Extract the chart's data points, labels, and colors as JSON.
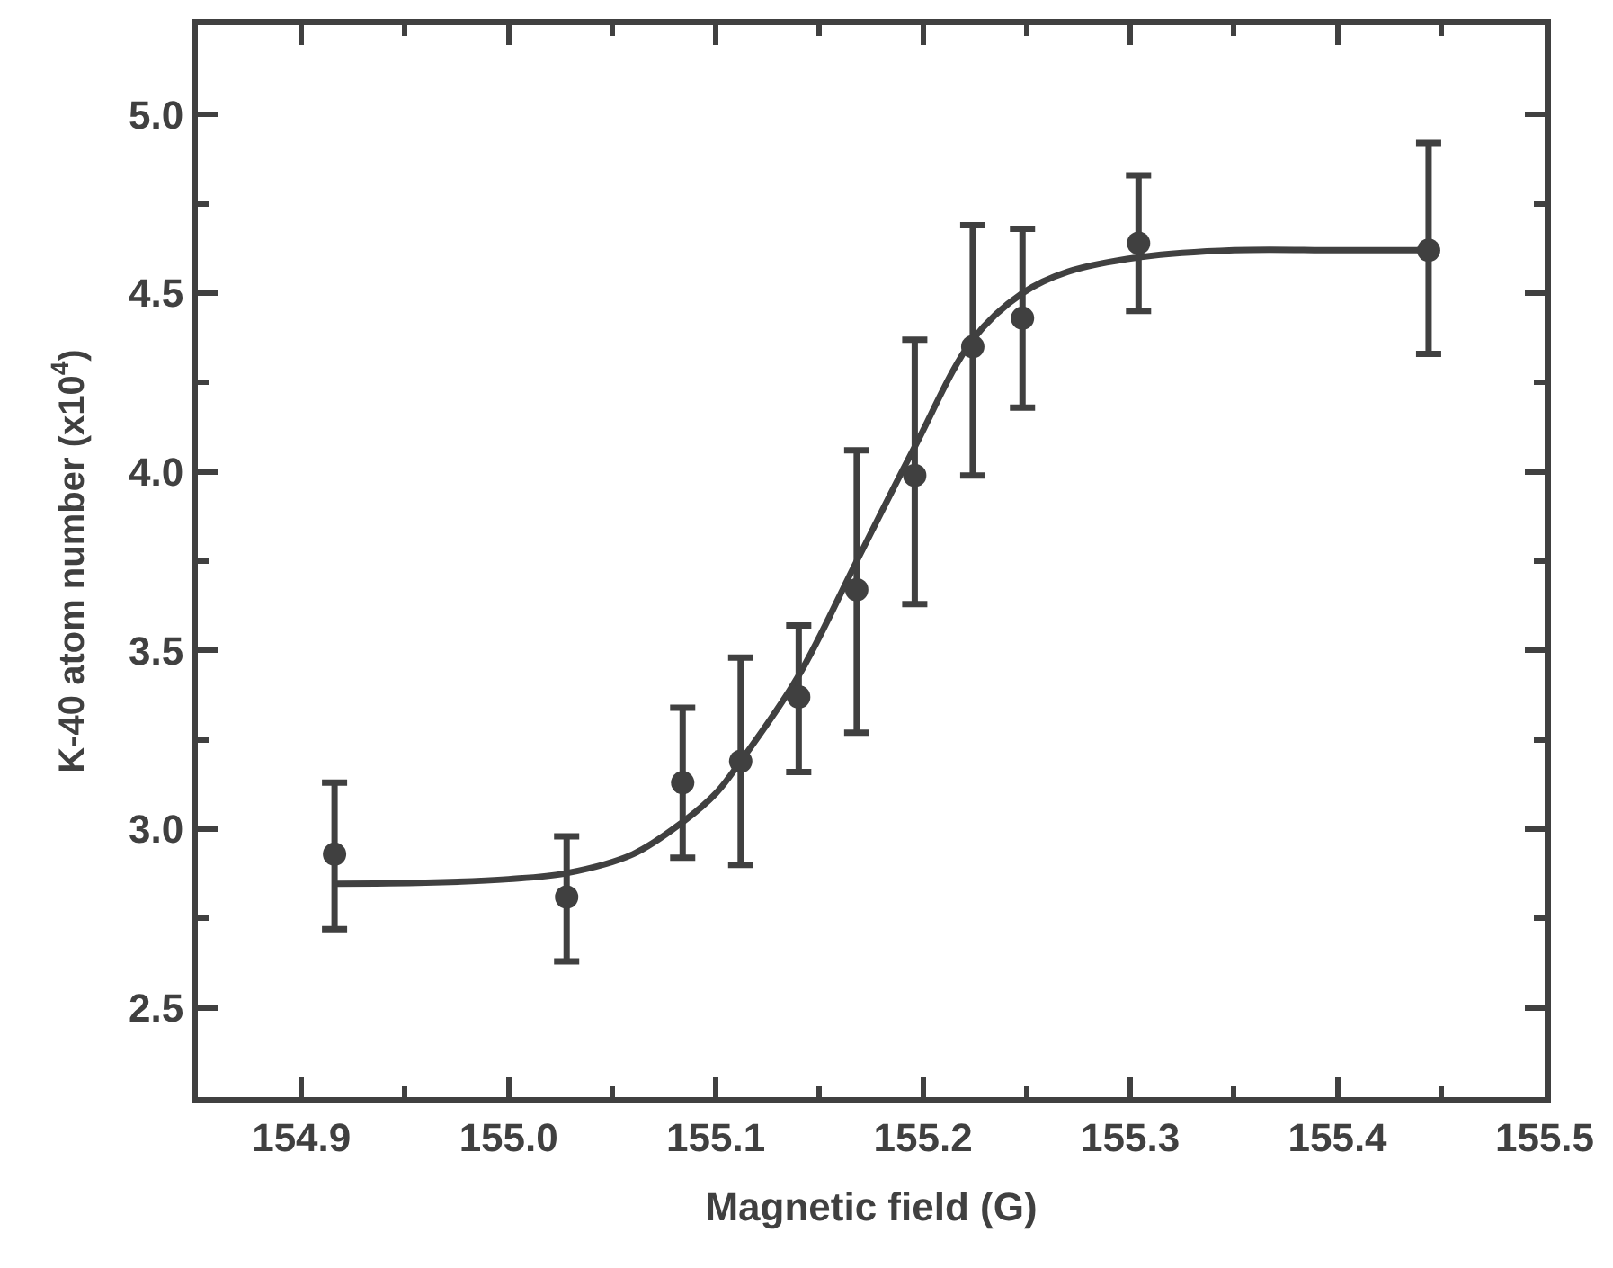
{
  "chart_data": {
    "type": "scatter",
    "xlabel": "Magnetic field (G)",
    "ylabel": "K-40 atom number (x10$^{4}$)",
    "xlim": [
      154.85,
      155.5
    ],
    "ylim": [
      2.25,
      5.25
    ],
    "xticks": [
      154.9,
      {
        "value": 155,
        "label": "155.0"
      },
      155.1,
      155.2,
      155.3,
      155.4,
      155.5,
      {
        "value": 154.95,
        "label": null
      },
      {
        "value": 155.05,
        "label": null
      },
      {
        "value": 155.15,
        "label": null
      },
      {
        "value": 155.25,
        "label": null
      },
      {
        "value": 155.35,
        "label": null
      },
      {
        "value": 155.45,
        "label": null
      }
    ],
    "yticks": [
      2.5,
      {
        "value": 3,
        "label": "3.0"
      },
      3.5,
      {
        "value": 4,
        "label": "4.0"
      },
      4.5,
      {
        "value": 5,
        "label": "5.0"
      },
      {
        "value": 2.75,
        "label": null
      },
      {
        "value": 3.25,
        "label": null
      },
      {
        "value": 3.75,
        "label": null
      },
      {
        "value": 4.25,
        "label": null
      },
      {
        "value": 4.75,
        "label": null
      }
    ],
    "grid": false,
    "marker": "circle",
    "series": [
      {
        "color": "#404040",
        "x": [
          154.916,
          155.028,
          155.084,
          155.112,
          155.14,
          155.168,
          155.196,
          155.224,
          155.248,
          155.304,
          155.444
        ],
        "values": [
          2.93,
          2.81,
          3.13,
          3.19,
          3.37,
          3.67,
          3.99,
          4.35,
          4.43,
          4.64,
          4.62
        ],
        "errors": [
          [
            2.72,
            3.13
          ],
          [
            2.63,
            2.98
          ],
          [
            2.92,
            3.34
          ],
          [
            2.9,
            3.48
          ],
          [
            3.16,
            3.57
          ],
          [
            3.27,
            4.06
          ],
          [
            3.63,
            4.37
          ],
          [
            3.99,
            4.69
          ],
          [
            4.18,
            4.68
          ],
          [
            4.45,
            4.83
          ],
          [
            4.33,
            4.92
          ]
        ]
      },
      {
        "type": "line",
        "color": "#404040",
        "line_style": "solid",
        "marker": "none",
        "x": [
          154.916,
          154.96,
          155.0,
          155.028,
          155.06,
          155.084,
          155.1,
          155.112,
          155.14,
          155.168,
          155.196,
          155.224,
          155.248,
          155.27,
          155.304,
          155.35,
          155.4,
          155.444
        ],
        "values": [
          2.847,
          2.85,
          2.86,
          2.877,
          2.93,
          3.02,
          3.1,
          3.19,
          3.43,
          3.75,
          4.07,
          4.37,
          4.5,
          4.56,
          4.6,
          4.62,
          4.62,
          4.62
        ]
      }
    ]
  }
}
